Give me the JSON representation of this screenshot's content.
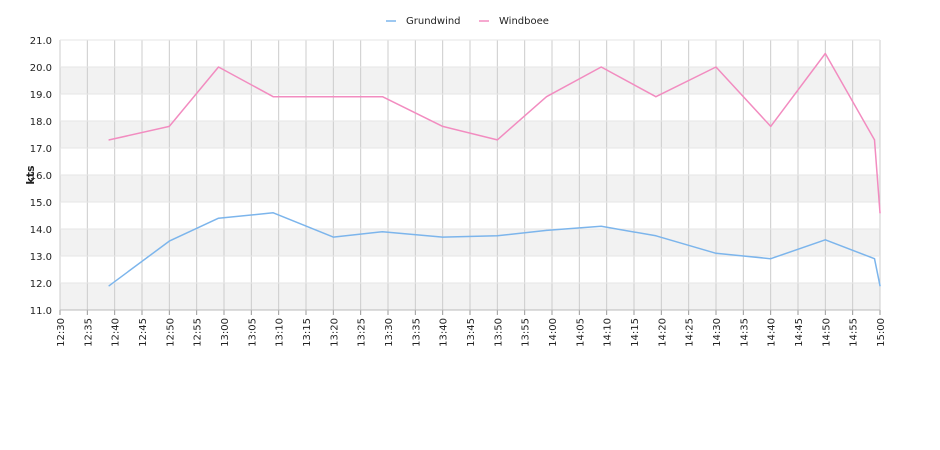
{
  "chart_data": {
    "type": "line",
    "title": "",
    "xlabel": "",
    "ylabel": "kts",
    "ylim": [
      11.0,
      21.0
    ],
    "y_ticks": [
      "11.0",
      "12.0",
      "13.0",
      "14.0",
      "15.0",
      "16.0",
      "17.0",
      "18.0",
      "19.0",
      "20.0",
      "21.0"
    ],
    "x_range": [
      "12:30",
      "15:00"
    ],
    "x_ticks": [
      "12:30",
      "12:35",
      "12:40",
      "12:45",
      "12:50",
      "12:55",
      "13:00",
      "13:05",
      "13:10",
      "13:15",
      "13:20",
      "13:25",
      "13:30",
      "13:35",
      "13:40",
      "13:45",
      "13:50",
      "13:55",
      "14:00",
      "14:05",
      "14:10",
      "14:15",
      "14:20",
      "14:25",
      "14:30",
      "14:35",
      "14:40",
      "14:45",
      "14:50",
      "14:55",
      "15:00"
    ],
    "grid": true,
    "legend_position": "top-center",
    "series": [
      {
        "name": "Grundwind",
        "color": "#7cb5ec",
        "points": [
          {
            "x": "12:39",
            "y": 11.9
          },
          {
            "x": "12:50",
            "y": 13.55
          },
          {
            "x": "12:59",
            "y": 14.4
          },
          {
            "x": "13:09",
            "y": 14.6
          },
          {
            "x": "13:20",
            "y": 13.7
          },
          {
            "x": "13:29",
            "y": 13.9
          },
          {
            "x": "13:40",
            "y": 13.7
          },
          {
            "x": "13:50",
            "y": 13.75
          },
          {
            "x": "13:59",
            "y": 13.95
          },
          {
            "x": "14:09",
            "y": 14.1
          },
          {
            "x": "14:19",
            "y": 13.75
          },
          {
            "x": "14:30",
            "y": 13.1
          },
          {
            "x": "14:40",
            "y": 12.9
          },
          {
            "x": "14:50",
            "y": 13.6
          },
          {
            "x": "14:59",
            "y": 12.9
          },
          {
            "x": "15:00",
            "y": 11.9
          }
        ]
      },
      {
        "name": "Windboee",
        "color": "#f28cc0",
        "points": [
          {
            "x": "12:39",
            "y": 17.3
          },
          {
            "x": "12:50",
            "y": 17.8
          },
          {
            "x": "12:59",
            "y": 20.0
          },
          {
            "x": "13:09",
            "y": 18.9
          },
          {
            "x": "13:20",
            "y": 18.9
          },
          {
            "x": "13:29",
            "y": 18.9
          },
          {
            "x": "13:40",
            "y": 17.8
          },
          {
            "x": "13:50",
            "y": 17.3
          },
          {
            "x": "13:59",
            "y": 18.9
          },
          {
            "x": "14:09",
            "y": 20.0
          },
          {
            "x": "14:19",
            "y": 18.9
          },
          {
            "x": "14:30",
            "y": 20.0
          },
          {
            "x": "14:40",
            "y": 17.8
          },
          {
            "x": "14:50",
            "y": 20.5
          },
          {
            "x": "14:59",
            "y": 17.3
          },
          {
            "x": "15:00",
            "y": 14.6
          }
        ]
      }
    ]
  }
}
